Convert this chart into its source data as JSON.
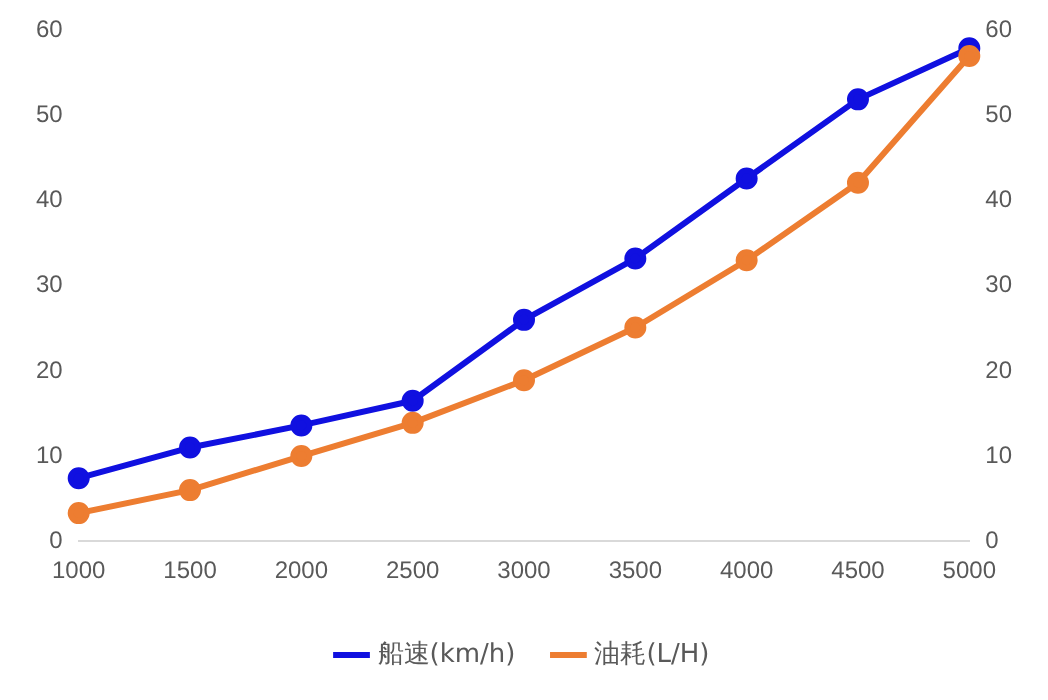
{
  "chart_data": {
    "type": "line",
    "categories": [
      "1000",
      "1500",
      "2000",
      "2500",
      "3000",
      "3500",
      "4000",
      "4500",
      "5000"
    ],
    "series": [
      {
        "name": "船速(km/h)",
        "color": "#1010e0",
        "values": [
          7.4,
          11,
          13.6,
          16.5,
          26,
          33.2,
          42.6,
          51.9,
          57.9
        ]
      },
      {
        "name": "油耗(L/H)",
        "color": "#ed7d31",
        "values": [
          3.3,
          6,
          10,
          13.9,
          18.9,
          25.1,
          33,
          42.1,
          57
        ]
      }
    ],
    "ylim": [
      0,
      60
    ],
    "yticks": [
      0,
      10,
      20,
      30,
      40,
      50,
      60
    ],
    "y2lim": [
      0,
      60
    ],
    "y2ticks": [
      0,
      10,
      20,
      30,
      40,
      50,
      60
    ],
    "grid": false,
    "legend": "bottom",
    "marker": "circle",
    "line_style": "solid"
  }
}
